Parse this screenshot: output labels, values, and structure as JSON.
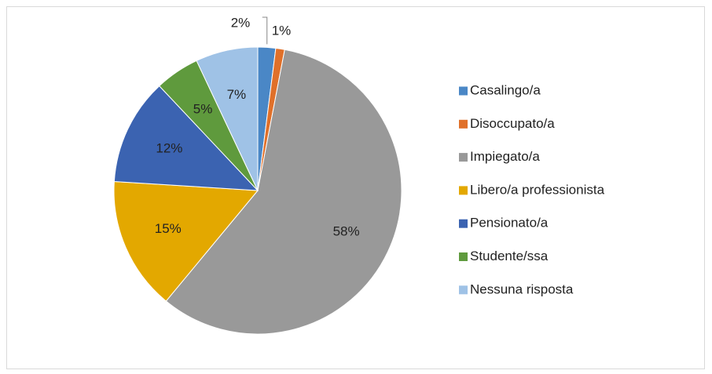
{
  "chart_data": {
    "type": "pie",
    "categories": [
      "Casalingo/a",
      "Disoccupato/a",
      "Impiegato/a",
      "Libero/a professionista",
      "Pensionato/a",
      "Studente/ssa",
      "Nessuna risposta"
    ],
    "values": [
      2,
      1,
      58,
      15,
      12,
      5,
      7
    ],
    "value_labels": [
      "2%",
      "1%",
      "58%",
      "15%",
      "12%",
      "5%",
      "7%"
    ],
    "colors": [
      "#4a87c6",
      "#e0702a",
      "#999999",
      "#e3a800",
      "#3b63b1",
      "#5f9a3d",
      "#9fc2e6"
    ],
    "legend": "right"
  }
}
